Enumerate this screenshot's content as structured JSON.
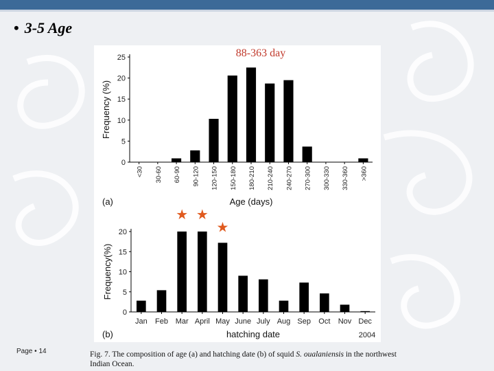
{
  "slide": {
    "bullet": "3-5 Age",
    "annotation": "88-363 day",
    "page_label": "Page",
    "page_number": "14",
    "caption_prefix": "Fig. 7. The composition of age (a) and hatching date (b) of squid ",
    "caption_species": "S. oualaniensis",
    "caption_suffix": " in the northwest Indian Ocean.",
    "colors": {
      "header_bar": "#3c6a98",
      "annotation": "#c0392b",
      "star": "#e05a1e",
      "bars": "#000000"
    }
  },
  "chart_data": [
    {
      "type": "bar",
      "panel_label": "(a)",
      "ylabel": "Frequency (%)",
      "xlabel": "Age (days)",
      "ylim": [
        0,
        25
      ],
      "yticks": [
        0,
        5,
        10,
        15,
        20,
        25
      ],
      "categories": [
        "<30",
        "30-60",
        "60-90",
        "90-120",
        "120-150",
        "150-180",
        "180-210",
        "210-240",
        "240-270",
        "270-300",
        "300-330",
        "330-360",
        ">360"
      ],
      "values": [
        0,
        0,
        0.9,
        2.8,
        10.3,
        20.6,
        22.5,
        18.7,
        19.5,
        3.7,
        0,
        0,
        0.9
      ]
    },
    {
      "type": "bar",
      "panel_label": "(b)",
      "ylabel": "Frequency(%)",
      "xlabel": "hatching date",
      "x_note": "2004",
      "ylim": [
        0,
        20
      ],
      "yticks": [
        0,
        5,
        10,
        15,
        20
      ],
      "categories": [
        "Jan",
        "Feb",
        "Mar",
        "April",
        "May",
        "June",
        "July",
        "Aug",
        "Sep",
        "Oct",
        "Nov",
        "Dec"
      ],
      "values": [
        2.8,
        5.4,
        20.0,
        20.0,
        17.2,
        9.0,
        8.1,
        2.8,
        7.3,
        4.6,
        1.8,
        0.2
      ],
      "starred": [
        "Mar",
        "April",
        "May"
      ]
    }
  ]
}
